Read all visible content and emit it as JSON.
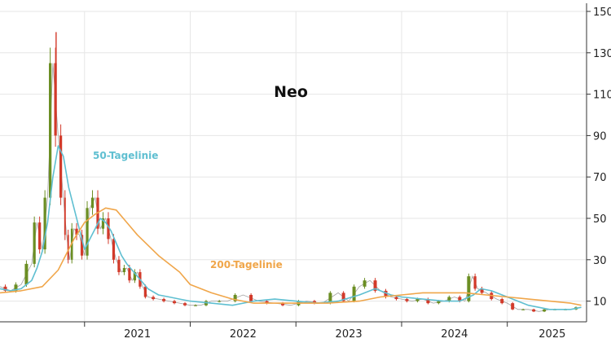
{
  "chart_data": {
    "type": "line",
    "title": "Neo",
    "ylim": [
      0,
      150
    ],
    "y_ticks": [
      10,
      30,
      50,
      70,
      90,
      110,
      130,
      150
    ],
    "y_ticks_text": [
      "10",
      "30",
      "50",
      "70",
      "90",
      "110",
      "130",
      "150"
    ],
    "x_tick_labels": [
      "2021",
      "2022",
      "2023",
      "2024",
      "2025"
    ],
    "xlim": [
      2020.2,
      2025.75
    ],
    "grid": true,
    "y_axis_side": "right",
    "colors": {
      "price_up": "#6b8e23",
      "price_down": "#d23a2a",
      "ma50": "#5fbfd1",
      "ma200": "#f0a64a",
      "grid": "#e6e6e6"
    },
    "annotations": [
      {
        "text": "50-Tagelinie",
        "series": "ma50"
      },
      {
        "text": "200-Tagelinie",
        "series": "ma200"
      }
    ],
    "series": [
      {
        "key": "price",
        "style": "candlestick",
        "x": [
          2020.2,
          2020.3,
          2020.4,
          2020.5,
          2020.55,
          2020.6,
          2020.65,
          2020.7,
          2020.75,
          2020.8,
          2020.83,
          2020.86,
          2020.9,
          2020.95,
          2021.0,
          2021.05,
          2021.1,
          2021.15,
          2021.2,
          2021.25,
          2021.3,
          2021.35,
          2021.4,
          2021.45,
          2021.5,
          2021.55,
          2021.6,
          2021.7,
          2021.8,
          2021.9,
          2022.0,
          2022.1,
          2022.2,
          2022.35,
          2022.5,
          2022.65,
          2022.8,
          2022.95,
          2023.1,
          2023.25,
          2023.4,
          2023.5,
          2023.6,
          2023.7,
          2023.8,
          2023.9,
          2024.0,
          2024.1,
          2024.2,
          2024.3,
          2024.4,
          2024.5,
          2024.6,
          2024.67,
          2024.72,
          2024.8,
          2024.9,
          2025.0,
          2025.1,
          2025.2,
          2025.3,
          2025.4,
          2025.5,
          2025.6,
          2025.7
        ],
        "values": [
          17,
          15,
          18,
          28,
          48,
          35,
          60,
          125,
          90,
          60,
          42,
          30,
          45,
          42,
          32,
          55,
          60,
          45,
          50,
          40,
          30,
          24,
          26,
          20,
          24,
          17,
          12,
          11,
          10,
          9,
          8,
          8,
          10,
          10,
          13,
          10,
          9,
          8,
          10,
          9,
          14,
          10,
          17,
          20,
          15,
          12,
          11,
          10,
          11,
          9,
          10,
          12,
          10,
          22,
          16,
          14,
          11,
          9,
          6,
          6,
          5,
          6,
          6,
          6,
          7
        ],
        "peak": 140
      },
      {
        "key": "ma50",
        "name": "50-Tagelinie",
        "x": [
          2020.2,
          2020.3,
          2020.4,
          2020.5,
          2020.55,
          2020.6,
          2020.65,
          2020.7,
          2020.75,
          2020.8,
          2020.85,
          2020.9,
          2020.95,
          2021.0,
          2021.05,
          2021.1,
          2021.15,
          2021.2,
          2021.25,
          2021.3,
          2021.35,
          2021.4,
          2021.5,
          2021.6,
          2021.7,
          2021.8,
          2021.9,
          2022.0,
          2022.2,
          2022.4,
          2022.6,
          2022.8,
          2023.0,
          2023.2,
          2023.4,
          2023.6,
          2023.75,
          2023.9,
          2024.0,
          2024.2,
          2024.4,
          2024.55,
          2024.68,
          2024.75,
          2024.85,
          2025.0,
          2025.2,
          2025.4,
          2025.6,
          2025.7
        ],
        "values": [
          16,
          15,
          16,
          20,
          26,
          34,
          48,
          70,
          85,
          80,
          65,
          55,
          45,
          35,
          40,
          45,
          50,
          48,
          44,
          38,
          32,
          28,
          22,
          16,
          13,
          12,
          11,
          10,
          9,
          8,
          10,
          11,
          10,
          9,
          10,
          13,
          16,
          13,
          12,
          11,
          10,
          10,
          13,
          16,
          15,
          12,
          8,
          6,
          6,
          7
        ]
      },
      {
        "key": "ma200",
        "name": "200-Tagelinie",
        "x": [
          2020.2,
          2020.4,
          2020.6,
          2020.75,
          2020.9,
          2021.0,
          2021.1,
          2021.2,
          2021.3,
          2021.4,
          2021.5,
          2021.7,
          2021.9,
          2022.0,
          2022.2,
          2022.4,
          2022.6,
          2022.8,
          2023.0,
          2023.3,
          2023.6,
          2023.8,
          2024.0,
          2024.2,
          2024.4,
          2024.6,
          2024.8,
          2025.0,
          2025.2,
          2025.4,
          2025.6,
          2025.7
        ],
        "values": [
          14,
          15,
          17,
          25,
          40,
          48,
          52,
          55,
          54,
          48,
          42,
          32,
          24,
          18,
          14,
          11,
          9,
          9,
          9,
          9,
          10,
          12,
          13,
          14,
          14,
          14,
          13,
          12,
          11,
          10,
          9,
          8
        ]
      }
    ]
  }
}
